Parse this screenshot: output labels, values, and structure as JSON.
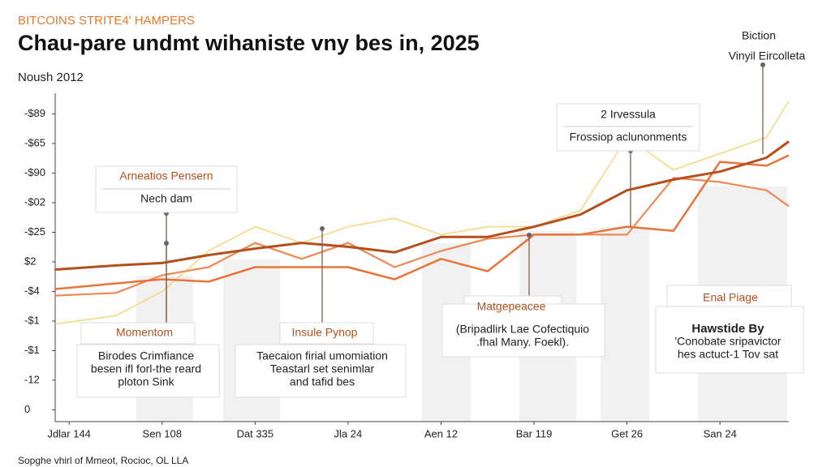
{
  "chart_data": {
    "type": "line",
    "kicker": "BITCOINS STRITE4' HAMPERS",
    "title": "Chau-pare undmt wihaniste vny bes in, 2025",
    "subtitle": "Noush 2012",
    "footer": "Sopghe vhirl of Mmeot, Rocioc, OL LLA",
    "xlim": [
      -0.15,
      7.74
    ],
    "xticks": [
      {
        "value": 0,
        "label": "Jdlar 144"
      },
      {
        "value": 1,
        "label": "Sen 108"
      },
      {
        "value": 2,
        "label": "Dat 335"
      },
      {
        "value": 3,
        "label": "Jla 24"
      },
      {
        "value": 4,
        "label": "Aen 12"
      },
      {
        "value": 5,
        "label": "Bar 119"
      },
      {
        "value": 6,
        "label": "Get 26"
      },
      {
        "value": 7,
        "label": "San 24"
      }
    ],
    "ylim": [
      -0.4,
      10.7
    ],
    "yticks": [
      {
        "value": 10,
        "label": "-$89"
      },
      {
        "value": 9,
        "label": "-$65"
      },
      {
        "value": 8,
        "label": "-$90"
      },
      {
        "value": 7,
        "label": "-$02"
      },
      {
        "value": 6,
        "label": "-$25"
      },
      {
        "value": 5,
        "label": "$2"
      },
      {
        "value": 4,
        "label": "-$4"
      },
      {
        "value": 3,
        "label": "-$1"
      },
      {
        "value": 2,
        "label": "-$1"
      },
      {
        "value": 1,
        "label": "-12"
      },
      0
    ],
    "x": [
      -0.15,
      0.5,
      1,
      1.5,
      2,
      2.5,
      3,
      3.5,
      4,
      4.5,
      5,
      5.5,
      6,
      6.5,
      7,
      7.5,
      7.74
    ],
    "series": [
      {
        "color": "#f5d77a",
        "values": [
          2.9,
          3.18,
          4.0,
          5.37,
          6.19,
          5.64,
          6.19,
          6.47,
          5.92,
          6.19,
          6.19,
          6.74,
          9.21,
          8.11,
          8.66,
          9.21,
          10.44
        ]
      },
      {
        "color": "#ee8a55",
        "values": [
          3.86,
          3.95,
          4.55,
          4.82,
          5.64,
          5.1,
          5.64,
          4.82,
          5.37,
          5.78,
          5.92,
          5.92,
          5.92,
          7.84,
          7.7,
          7.42,
          6.88
        ]
      },
      {
        "color": "#e8743b",
        "values": [
          4.08,
          4.27,
          4.41,
          4.33,
          4.82,
          4.82,
          4.82,
          4.41,
          5.1,
          4.68,
          5.92,
          5.92,
          6.19,
          6.05,
          8.38,
          8.25,
          8.6
        ]
      },
      {
        "color": "#b5501e",
        "values": [
          4.74,
          4.88,
          4.96,
          5.23,
          5.45,
          5.64,
          5.51,
          5.32,
          5.84,
          5.84,
          6.19,
          6.6,
          7.42,
          7.78,
          8.05,
          8.52,
          9.07
        ]
      }
    ],
    "annotations": [
      {
        "label": "Arneatios Pensern",
        "lines": [
          "Nech dam"
        ]
      },
      {
        "label": "2 Irvessula",
        "lines": [
          "Frossiop aclunonments"
        ]
      },
      {
        "label": "Biction",
        "lines": [
          "Vinyil Eircolleta"
        ]
      },
      {
        "label": "Momentom",
        "lines": [
          "Birodes Crimfiance",
          "besen ifl forl-the reard",
          "ploton Sink"
        ]
      },
      {
        "label": "Insule Pynop",
        "lines": [
          "Taecaion firial umomiation",
          "Teastarl set senimlar",
          "and tafid bes"
        ]
      },
      {
        "label": "Matgepeacee",
        "lines": [
          "(Bripadlirk Lae Cofectiquio",
          ".fhal Many. Foekl)."
        ]
      },
      {
        "label": "Enal Piage",
        "lines": [
          "Hawstide By",
          "'Conobate sripavictor",
          "hes actuct-1 Tov sat"
        ]
      }
    ]
  }
}
